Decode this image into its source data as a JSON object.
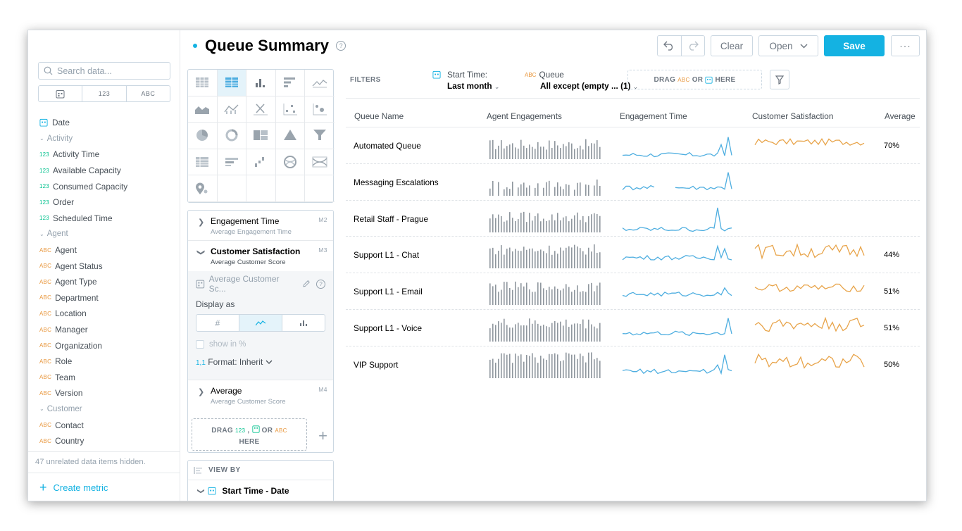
{
  "app": {
    "title": "Queue Summary"
  },
  "toolbar": {
    "clear_label": "Clear",
    "open_label": "Open",
    "save_label": "Save",
    "more_label": "···"
  },
  "left": {
    "search_placeholder": "Search data...",
    "type_filters": [
      "123",
      "ABC"
    ],
    "hidden_note": "47 unrelated data items hidden.",
    "create_metric": "Create metric"
  },
  "catalog": [
    {
      "type": "date",
      "label": "Date"
    },
    {
      "type": "group",
      "label": "Activity"
    },
    {
      "type": "num",
      "tag": "123",
      "label": "Activity Time"
    },
    {
      "type": "num",
      "tag": "123",
      "label": "Available Capacity"
    },
    {
      "type": "num",
      "tag": "123",
      "label": "Consumed Capacity"
    },
    {
      "type": "num",
      "tag": "123",
      "label": "Order"
    },
    {
      "type": "num",
      "tag": "123",
      "label": "Scheduled Time"
    },
    {
      "type": "group",
      "label": "Agent"
    },
    {
      "type": "abc",
      "tag": "ABC",
      "label": "Agent"
    },
    {
      "type": "abc",
      "tag": "ABC",
      "label": "Agent Status"
    },
    {
      "type": "abc",
      "tag": "ABC",
      "label": "Agent Type"
    },
    {
      "type": "abc",
      "tag": "ABC",
      "label": "Department"
    },
    {
      "type": "abc",
      "tag": "ABC",
      "label": "Location"
    },
    {
      "type": "abc",
      "tag": "ABC",
      "label": "Manager"
    },
    {
      "type": "abc",
      "tag": "ABC",
      "label": "Organization"
    },
    {
      "type": "abc",
      "tag": "ABC",
      "label": "Role"
    },
    {
      "type": "abc",
      "tag": "ABC",
      "label": "Team"
    },
    {
      "type": "abc",
      "tag": "ABC",
      "label": "Version"
    },
    {
      "type": "group",
      "label": "Customer"
    },
    {
      "type": "abc",
      "tag": "ABC",
      "label": "Contact"
    },
    {
      "type": "abc",
      "tag": "ABC",
      "label": "Country"
    }
  ],
  "metrics": {
    "m2": {
      "name": "Engagement Time",
      "sub": "Average Engagement Time",
      "id": "M2"
    },
    "m3": {
      "name": "Customer Satisfaction",
      "sub": "Average Customer Score",
      "id": "M3"
    },
    "m4": {
      "name": "Average",
      "sub": "Average Customer Score",
      "id": "M4"
    },
    "select_value": "Average Customer Sc...",
    "display_as_label": "Display as",
    "display_options": [
      "#"
    ],
    "show_in_pct": "show in %",
    "format_prefix": "1,1",
    "format_label": "Format: Inherit",
    "drop_text_1": "DRAG",
    "drop_num": "123",
    "drop_or": "OR",
    "drop_abc": "ABC",
    "drop_here": "HERE"
  },
  "viewby": {
    "header": "VIEW BY",
    "item": "Start Time - Date"
  },
  "filters": {
    "label": "FILTERS",
    "start_time": {
      "title": "Start Time:",
      "value": "Last month"
    },
    "queue": {
      "tag": "ABC",
      "title": "Queue",
      "value": "All except (empty ... (1)"
    },
    "drop_drag": "DRAG",
    "drop_abc": "ABC",
    "drop_or": "OR",
    "drop_here": "HERE"
  },
  "table": {
    "headers": [
      "Queue Name",
      "Agent Engagements",
      "Engagement Time",
      "Customer Satisfaction",
      "Average"
    ],
    "rows": [
      {
        "name": "Automated Queue",
        "avg": "70%"
      },
      {
        "name": "Messaging Escalations",
        "avg": ""
      },
      {
        "name": "Retail Staff - Prague",
        "avg": ""
      },
      {
        "name": "Support L1 - Chat",
        "avg": "44%"
      },
      {
        "name": "Support L1 - Email",
        "avg": "51%"
      },
      {
        "name": "Support L1 - Voice",
        "avg": "51%"
      },
      {
        "name": "VIP Support",
        "avg": "50%"
      }
    ]
  },
  "colors": {
    "accent": "#14b2e2",
    "sparkline_blue": "#4eaee0",
    "sparkline_orange": "#e8a44a",
    "bars": "#8f979e",
    "num_tag": "#00c18d",
    "abc_tag": "#e8963b"
  }
}
